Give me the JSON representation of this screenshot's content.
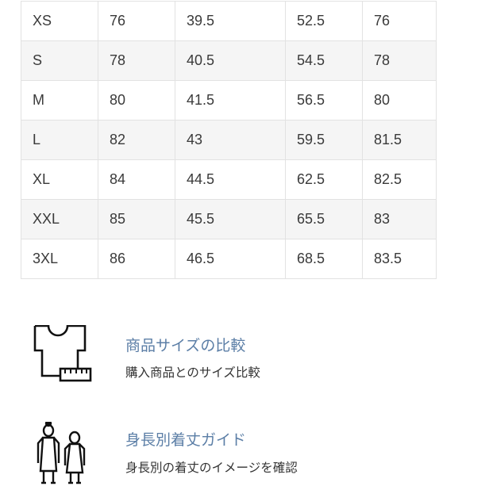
{
  "size_table": {
    "rows": [
      [
        "XS",
        "76",
        "39.5",
        "52.5",
        "76"
      ],
      [
        "S",
        "78",
        "40.5",
        "54.5",
        "78"
      ],
      [
        "M",
        "80",
        "41.5",
        "56.5",
        "80"
      ],
      [
        "L",
        "82",
        "43",
        "59.5",
        "81.5"
      ],
      [
        "XL",
        "84",
        "44.5",
        "62.5",
        "82.5"
      ],
      [
        "XXL",
        "85",
        "45.5",
        "65.5",
        "83"
      ],
      [
        "3XL",
        "86",
        "46.5",
        "68.5",
        "83.5"
      ]
    ]
  },
  "features": [
    {
      "icon": "shirt-ruler-icon",
      "title": "商品サイズの比較",
      "subtitle": "購入商品とのサイズ比較"
    },
    {
      "icon": "people-height-icon",
      "title": "身長別着丈ガイド",
      "subtitle": "身長別の着丈のイメージを確認"
    }
  ],
  "colors": {
    "link": "#5b7ea6",
    "stripe": "#f5f5f5",
    "border": "#e2e2e2"
  }
}
